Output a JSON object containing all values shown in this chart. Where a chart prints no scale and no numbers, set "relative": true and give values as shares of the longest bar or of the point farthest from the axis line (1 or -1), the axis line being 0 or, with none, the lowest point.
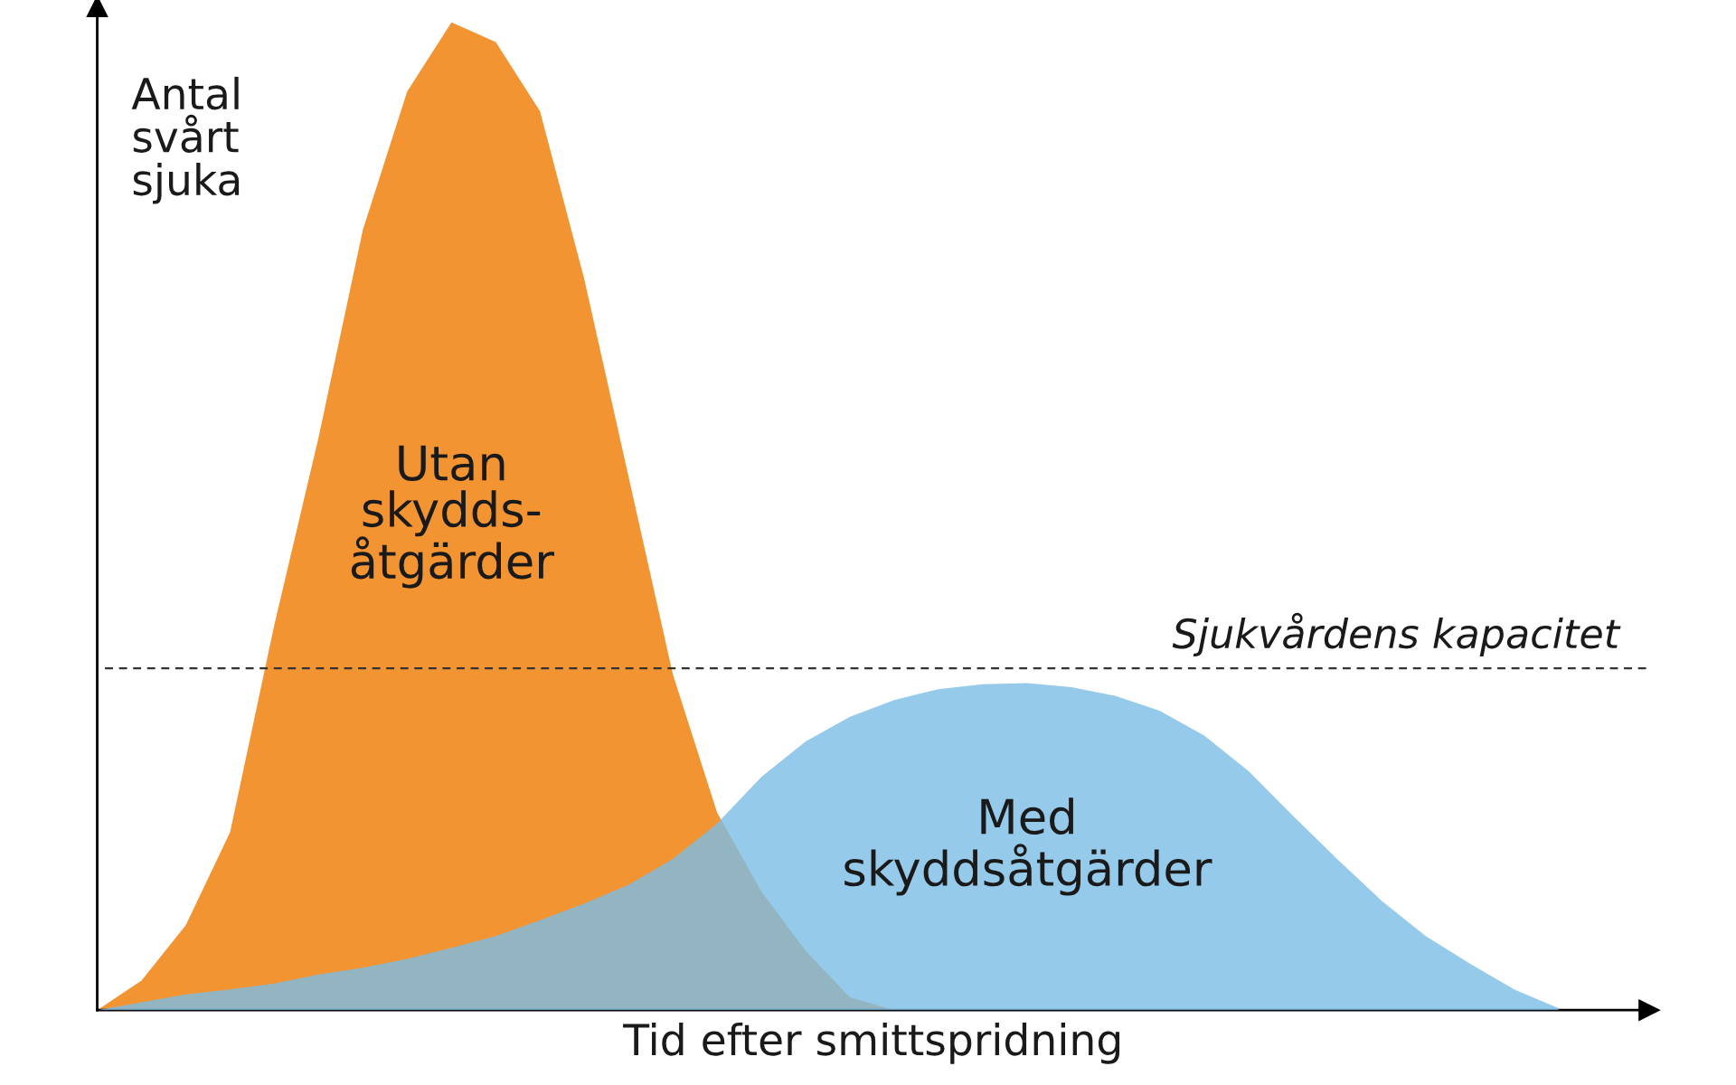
{
  "chart_data": {
    "type": "area",
    "relative": true,
    "xlabel": "Tid efter smittspridning",
    "ylabel": "Antal\nsvårt\nsjuka",
    "categories": [
      null,
      null,
      null,
      null,
      null,
      null,
      null,
      null,
      null,
      null,
      null,
      null,
      null,
      null,
      null,
      null,
      null,
      null,
      null,
      null,
      null,
      null,
      null,
      null,
      null,
      null,
      null,
      null,
      null,
      null,
      null,
      null,
      null,
      null,
      null,
      null
    ],
    "series": [
      {
        "name": "Utan\nskydds-\nåtgärder",
        "color": "#f39433",
        "values": [
          0,
          0.03,
          0.086,
          0.18,
          0.39,
          0.58,
          0.79,
          0.93,
          1.0,
          0.98,
          0.91,
          0.74,
          0.54,
          0.34,
          0.2,
          0.12,
          0.06,
          0.013,
          0,
          null,
          null,
          null,
          null,
          null,
          null,
          null,
          null,
          null,
          null,
          null,
          null,
          null,
          null,
          null,
          null,
          null
        ]
      },
      {
        "name": "Med\nskyddsåtgärder",
        "color": "#7bbde6",
        "values": [
          0,
          0.008,
          0.016,
          0.021,
          0.027,
          0.036,
          0.043,
          0.052,
          0.063,
          0.075,
          0.091,
          0.108,
          0.127,
          0.153,
          0.189,
          0.236,
          0.272,
          0.297,
          0.314,
          0.325,
          0.33,
          0.331,
          0.327,
          0.318,
          0.303,
          0.278,
          0.242,
          0.197,
          0.153,
          0.111,
          0.075,
          0.047,
          0.021,
          0.002,
          null,
          null
        ]
      }
    ],
    "ref_lines": [
      {
        "axis": "y",
        "value": 0.346,
        "label": "Sjukvårdens kapacitet",
        "color": "#333333",
        "line_style": "dashed"
      }
    ],
    "legend": false
  }
}
